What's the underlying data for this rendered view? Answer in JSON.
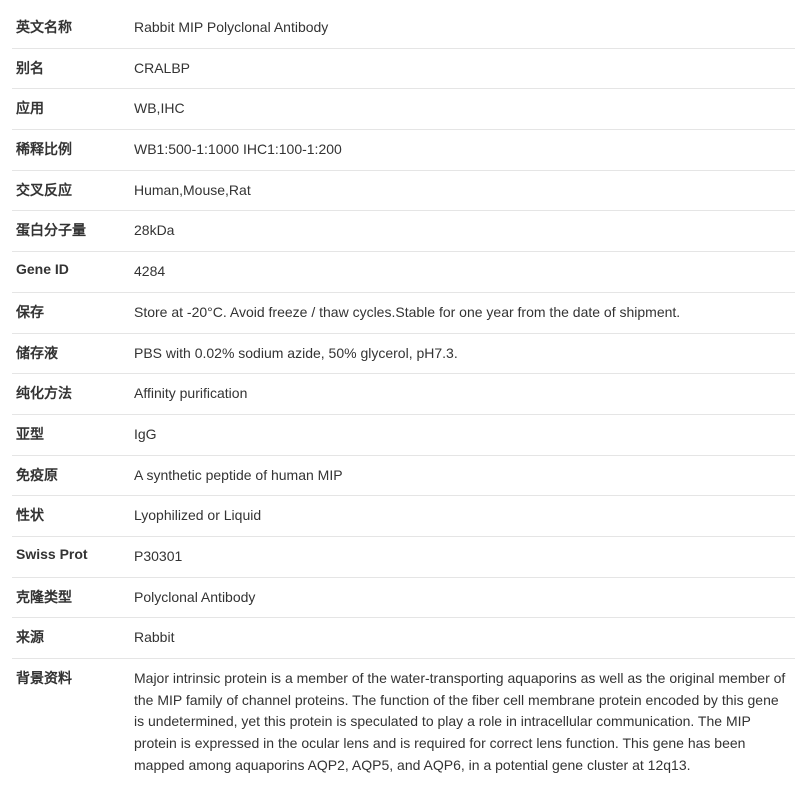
{
  "rows": [
    {
      "label": "英文名称",
      "value": "Rabbit MIP Polyclonal Antibody"
    },
    {
      "label": "别名",
      "value": "CRALBP"
    },
    {
      "label": "应用",
      "value": "WB,IHC"
    },
    {
      "label": "稀释比例",
      "value": "WB1:500-1:1000 IHC1:100-1:200"
    },
    {
      "label": "交叉反应",
      "value": "Human,Mouse,Rat"
    },
    {
      "label": "蛋白分子量",
      "value": "28kDa"
    },
    {
      "label": "Gene ID",
      "value": "4284"
    },
    {
      "label": "保存",
      "value": "Store at -20°C. Avoid freeze / thaw cycles.Stable for one year from the date of shipment."
    },
    {
      "label": "储存液",
      "value": "PBS with 0.02% sodium azide, 50% glycerol, pH7.3."
    },
    {
      "label": "纯化方法",
      "value": "Affinity purification"
    },
    {
      "label": "亚型",
      "value": "IgG"
    },
    {
      "label": "免疫原",
      "value": "A synthetic peptide of human MIP"
    },
    {
      "label": "性状",
      "value": "Lyophilized or Liquid"
    },
    {
      "label": "Swiss Prot",
      "value": "P30301"
    },
    {
      "label": "克隆类型",
      "value": "Polyclonal Antibody"
    },
    {
      "label": "来源",
      "value": "Rabbit"
    },
    {
      "label": "背景资料",
      "value": "Major intrinsic protein is a member of the water-transporting aquaporins as well as the original member of the MIP family of channel proteins. The function of the fiber cell membrane protein encoded by this gene is undetermined, yet this protein is speculated to play a role in intracellular communication. The MIP protein is expressed in the ocular lens and is required for correct lens function. This gene has been mapped among aquaporins AQP2, AQP5, and AQP6, in a potential gene cluster at 12q13."
    }
  ]
}
